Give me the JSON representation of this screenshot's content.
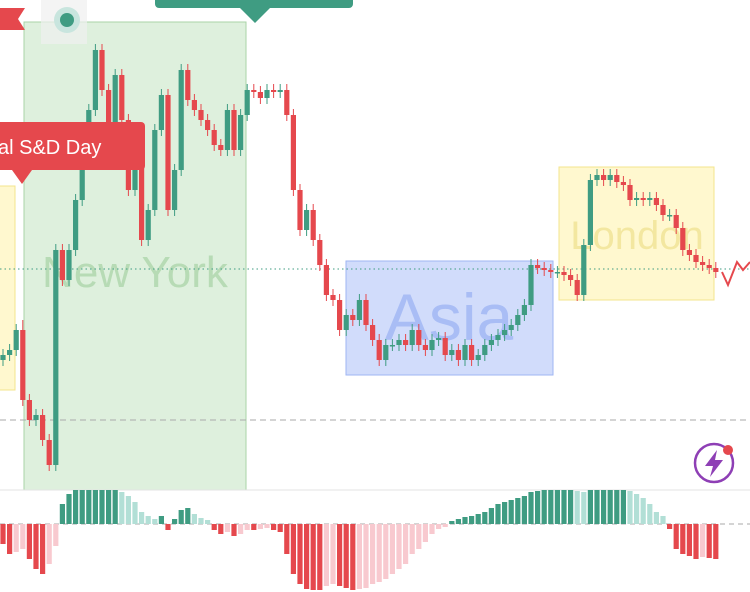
{
  "chart_data": [
    {
      "type": "candlestick",
      "open": [
        130,
        135,
        140,
        160,
        90,
        70,
        75,
        50,
        25,
        240,
        210,
        240,
        290,
        350,
        380,
        440,
        400,
        360,
        415,
        370,
        300,
        330,
        250,
        280,
        360,
        395,
        280,
        320,
        420,
        390,
        380,
        370,
        360,
        345,
        340,
        380,
        340,
        375,
        400,
        398,
        392,
        400,
        398,
        400,
        375,
        300,
        260,
        280,
        250,
        225,
        195,
        190,
        160,
        175,
        170,
        190,
        165,
        150,
        130,
        145,
        145,
        150,
        145,
        160,
        145,
        140,
        150,
        152,
        135,
        140,
        130,
        145,
        130,
        135,
        145,
        150,
        155,
        160,
        165,
        175,
        185,
        225,
        222,
        220,
        218,
        218,
        215,
        210,
        195,
        245,
        310,
        315,
        310,
        315,
        308,
        305,
        290,
        292,
        290,
        292,
        285,
        275,
        275,
        262,
        240,
        235,
        228,
        225,
        222
      ],
      "high": [
        141,
        146,
        166,
        170,
        96,
        81,
        81,
        56,
        246,
        246,
        246,
        296,
        356,
        386,
        446,
        446,
        406,
        421,
        421,
        376,
        336,
        336,
        286,
        366,
        401,
        401,
        326,
        426,
        426,
        396,
        386,
        376,
        366,
        351,
        386,
        386,
        381,
        406,
        406,
        404,
        406,
        406,
        406,
        406,
        381,
        306,
        286,
        286,
        256,
        231,
        201,
        196,
        181,
        181,
        196,
        196,
        171,
        156,
        151,
        151,
        156,
        156,
        166,
        166,
        151,
        156,
        158,
        158,
        146,
        146,
        151,
        151,
        141,
        151,
        156,
        161,
        166,
        171,
        181,
        191,
        231,
        231,
        228,
        226,
        224,
        224,
        221,
        216,
        251,
        316,
        321,
        321,
        321,
        321,
        314,
        311,
        298,
        298,
        298,
        298,
        291,
        281,
        281,
        268,
        246,
        241,
        234,
        231,
        228
      ],
      "low": [
        124,
        129,
        134,
        84,
        64,
        64,
        44,
        19,
        19,
        204,
        204,
        234,
        284,
        344,
        374,
        394,
        354,
        354,
        364,
        294,
        294,
        244,
        244,
        274,
        354,
        274,
        274,
        314,
        384,
        374,
        364,
        354,
        339,
        334,
        334,
        334,
        334,
        369,
        392,
        386,
        386,
        392,
        392,
        369,
        294,
        254,
        254,
        244,
        219,
        189,
        184,
        154,
        154,
        164,
        164,
        159,
        144,
        124,
        124,
        139,
        139,
        139,
        139,
        139,
        134,
        134,
        144,
        129,
        129,
        124,
        124,
        124,
        124,
        129,
        139,
        144,
        149,
        154,
        159,
        169,
        179,
        216,
        214,
        212,
        212,
        209,
        204,
        189,
        189,
        239,
        304,
        304,
        304,
        302,
        299,
        284,
        284,
        284,
        284,
        279,
        269,
        269,
        256,
        234,
        229,
        222,
        219,
        216,
        212
      ],
      "close": [
        135,
        140,
        160,
        90,
        70,
        75,
        50,
        25,
        240,
        210,
        240,
        290,
        350,
        380,
        440,
        400,
        360,
        415,
        370,
        300,
        330,
        250,
        280,
        360,
        395,
        280,
        320,
        420,
        390,
        380,
        370,
        360,
        345,
        340,
        380,
        340,
        375,
        400,
        398,
        392,
        400,
        398,
        400,
        375,
        300,
        260,
        280,
        250,
        225,
        195,
        190,
        160,
        175,
        170,
        190,
        165,
        150,
        130,
        145,
        145,
        150,
        145,
        160,
        145,
        140,
        150,
        152,
        135,
        140,
        130,
        145,
        130,
        135,
        145,
        150,
        155,
        160,
        165,
        175,
        185,
        225,
        222,
        220,
        218,
        218,
        215,
        210,
        195,
        245,
        310,
        315,
        310,
        315,
        308,
        305,
        290,
        292,
        290,
        292,
        285,
        275,
        275,
        262,
        240,
        235,
        228,
        225,
        222,
        218
      ],
      "ylim": [
        0,
        490
      ],
      "up_color": "#3f9c82",
      "down_color": "#e5484d",
      "annotations": [
        "New York",
        "Asia",
        "London"
      ],
      "label": "al S&D Day"
    },
    {
      "type": "histogram",
      "values": [
        -20,
        -30,
        -28,
        -25,
        -35,
        -45,
        -50,
        -40,
        -22,
        20,
        30,
        34,
        34,
        34,
        34,
        34,
        34,
        34,
        32,
        28,
        22,
        12,
        8,
        5,
        8,
        -6,
        5,
        14,
        16,
        10,
        6,
        4,
        -6,
        -10,
        -8,
        -12,
        -10,
        -6,
        -6,
        -5,
        -4,
        -6,
        -8,
        -30,
        -50,
        -60,
        -65,
        -66,
        -66,
        -62,
        -60,
        -62,
        -64,
        -66,
        -65,
        -64,
        -60,
        -58,
        -55,
        -50,
        -45,
        -40,
        -30,
        -25,
        -18,
        -10,
        -5,
        -3,
        3,
        5,
        7,
        8,
        10,
        12,
        16,
        20,
        22,
        24,
        26,
        28,
        32,
        33,
        34,
        34,
        34,
        34,
        34,
        33,
        32,
        34,
        34,
        34,
        34,
        34,
        34,
        33,
        30,
        26,
        20,
        12,
        8,
        -5,
        -25,
        -30,
        -32,
        -35,
        -33,
        -34,
        -35
      ],
      "ylim": [
        -70,
        36
      ],
      "colors": [
        "#3f9c82",
        "#b2dfd6",
        "#e5484d",
        "#f8c9cf"
      ]
    }
  ]
}
